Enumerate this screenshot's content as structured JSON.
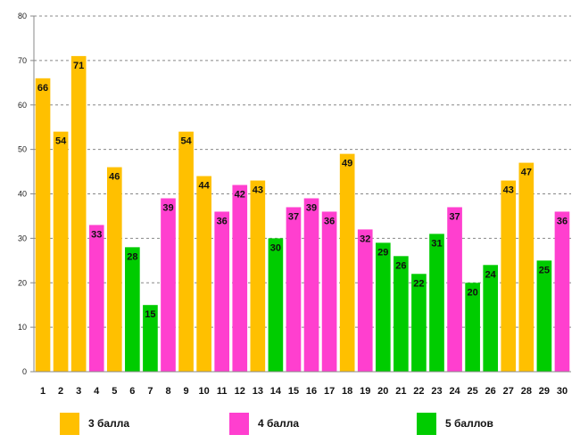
{
  "chart_data": {
    "type": "bar",
    "title": "",
    "xlabel": "",
    "ylabel": "",
    "ylim": [
      0,
      80
    ],
    "ytick_step": 10,
    "grid": true,
    "legend_position": "bottom",
    "categories": [
      "1",
      "2",
      "3",
      "4",
      "5",
      "6",
      "7",
      "8",
      "9",
      "10",
      "11",
      "12",
      "13",
      "14",
      "15",
      "16",
      "17",
      "18",
      "19",
      "20",
      "21",
      "22",
      "23",
      "24",
      "25",
      "26",
      "27",
      "28",
      "29",
      "30"
    ],
    "values": [
      66,
      54,
      71,
      33,
      46,
      28,
      15,
      39,
      54,
      44,
      36,
      42,
      43,
      30,
      37,
      39,
      36,
      49,
      32,
      29,
      26,
      22,
      31,
      37,
      20,
      24,
      43,
      47,
      25,
      36
    ],
    "groups": [
      "g3",
      "g3",
      "g3",
      "g4",
      "g3",
      "g5",
      "g5",
      "g4",
      "g3",
      "g3",
      "g4",
      "g4",
      "g3",
      "g5",
      "g4",
      "g4",
      "g4",
      "g3",
      "g4",
      "g5",
      "g5",
      "g5",
      "g5",
      "g4",
      "g5",
      "g5",
      "g3",
      "g3",
      "g5",
      "g4"
    ],
    "series": [
      {
        "id": "g3",
        "name": "3 балла",
        "color": "#FFC000"
      },
      {
        "id": "g4",
        "name": "4 балла",
        "color": "#FF3FCF"
      },
      {
        "id": "g5",
        "name": "5 баллов",
        "color": "#00CC00"
      }
    ]
  }
}
